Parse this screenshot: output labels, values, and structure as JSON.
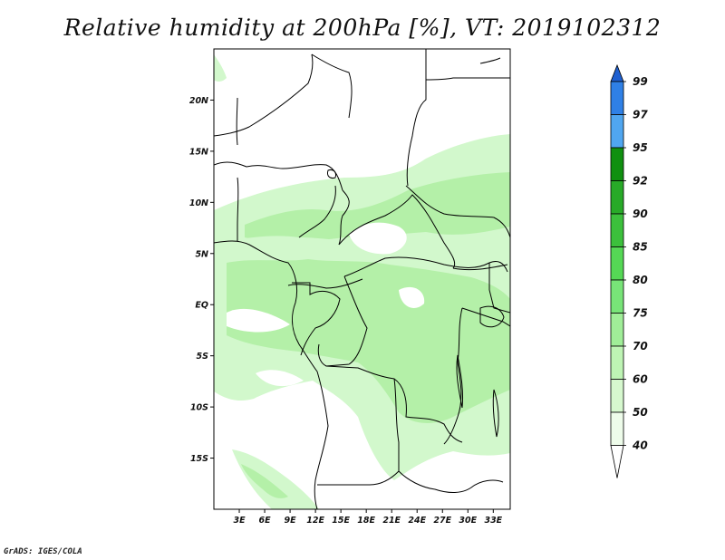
{
  "title": "Relative humidity at 200hPa [%], VT: 2019102312",
  "credit": "GrADS: IGES/COLA",
  "map": {
    "lon_range": [
      0,
      35
    ],
    "lat_range": [
      -20,
      25
    ],
    "lat_ticks": [
      {
        "value": 20,
        "label": "20N"
      },
      {
        "value": 15,
        "label": "15N"
      },
      {
        "value": 10,
        "label": "10N"
      },
      {
        "value": 5,
        "label": "5N"
      },
      {
        "value": 0,
        "label": "EQ"
      },
      {
        "value": -5,
        "label": "5S"
      },
      {
        "value": -10,
        "label": "10S"
      },
      {
        "value": -15,
        "label": "15S"
      }
    ],
    "lon_ticks": [
      {
        "value": 3,
        "label": "3E"
      },
      {
        "value": 6,
        "label": "6E"
      },
      {
        "value": 9,
        "label": "9E"
      },
      {
        "value": 12,
        "label": "12E"
      },
      {
        "value": 15,
        "label": "15E"
      },
      {
        "value": 18,
        "label": "18E"
      },
      {
        "value": 21,
        "label": "21E"
      },
      {
        "value": 24,
        "label": "24E"
      },
      {
        "value": 27,
        "label": "27E"
      },
      {
        "value": 30,
        "label": "30E"
      },
      {
        "value": 33,
        "label": "33E"
      }
    ]
  },
  "colorbar": {
    "levels": [
      "99",
      "97",
      "95",
      "92",
      "90",
      "85",
      "80",
      "75",
      "70",
      "60",
      "50",
      "40"
    ],
    "colors": [
      "#1f60d0",
      "#2f80e6",
      "#50a6f0",
      "#109010",
      "#28aa28",
      "#3cc03c",
      "#55d855",
      "#78e478",
      "#a0ee98",
      "#bef4b4",
      "#d6f8ce",
      "#eefcea",
      "#ffffff"
    ]
  },
  "colors": {
    "humidity_low": "#d2f8cc",
    "humidity_mid": "#b4f0a8",
    "border": "#000000"
  }
}
